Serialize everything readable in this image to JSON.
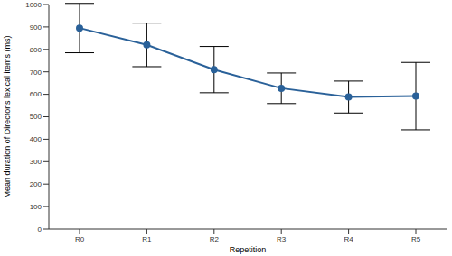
{
  "chart_data": {
    "type": "line",
    "x_label": "Repetition",
    "y_label": "Mean duration of Director's lexical items (ms)",
    "categories": [
      "R0",
      "R1",
      "R2",
      "R3",
      "R4",
      "R5"
    ],
    "values": [
      895,
      820,
      710,
      627,
      588,
      592
    ],
    "errors": [
      110,
      97,
      103,
      68,
      71,
      150
    ],
    "color": "#2a6199",
    "ylim": [
      0,
      1000
    ],
    "yticks": [
      0,
      100,
      200,
      300,
      400,
      500,
      600,
      700,
      800,
      900,
      1000
    ],
    "grid": false,
    "marker": "circle"
  }
}
